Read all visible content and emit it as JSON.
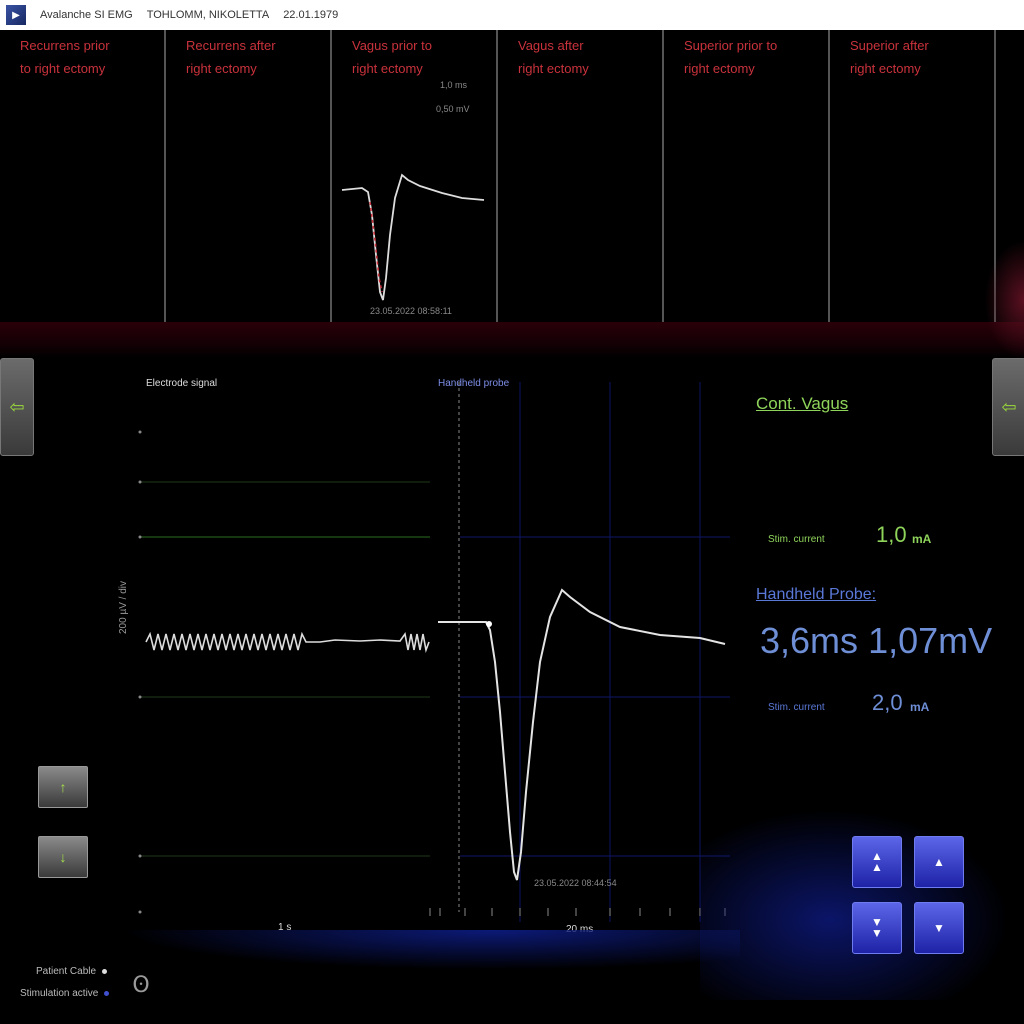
{
  "titlebar": {
    "app": "Avalanche SI EMG",
    "patient": "TOHLOMM, NIKOLETTA",
    "date": "22.01.1979"
  },
  "top_panels": [
    {
      "title": "Recurrens prior\nto right ectomy"
    },
    {
      "title": "Recurrens after\nright ectomy"
    },
    {
      "title": "Vagus prior to\nright ectomy",
      "scale_v": "1,0 ms",
      "scale_h": "0,50 mV",
      "timestamp": "23.05.2022 08:58:11"
    },
    {
      "title": "Vagus after\nright ectomy"
    },
    {
      "title": "Superior prior to\nright ectomy"
    },
    {
      "title": "Superior after\nright ectomy"
    }
  ],
  "main_plot": {
    "left_label": "Electrode signal",
    "right_label": "Handheld probe",
    "y_axis_label": "200 µV / div",
    "x_label_left": "1 s",
    "x_label_right": "20 ms",
    "timestamp": "23.05.2022 08:44:54"
  },
  "info": {
    "cont_vagus": "Cont. Vagus",
    "stim_current_label_1": "Stim. current",
    "stim_current_value_1": "1,0",
    "unit_ma": "mA",
    "handheld_probe": "Handheld Probe:",
    "latency": "3,6ms",
    "amplitude": "1,07mV",
    "stim_current_label_2": "Stim. current",
    "stim_current_value_2": "2,0"
  },
  "buttons": {
    "up": "↑",
    "down": "↓",
    "side_arrow": "⇦",
    "rb1": "▲\n▲",
    "rb2": "▲",
    "rb3": "▼\n▼",
    "rb4": "▼"
  },
  "status": {
    "patient_cable": "Patient Cable",
    "stimulation_active": "Stimulation active",
    "patient_cable_color": "#dddddd",
    "stimulation_color": "#4050d0"
  },
  "logo_glyph": "ʘ",
  "colors": {
    "accent_green": "#8fd45a",
    "accent_blue": "#6e8ed6",
    "title_red": "#c9323c"
  }
}
